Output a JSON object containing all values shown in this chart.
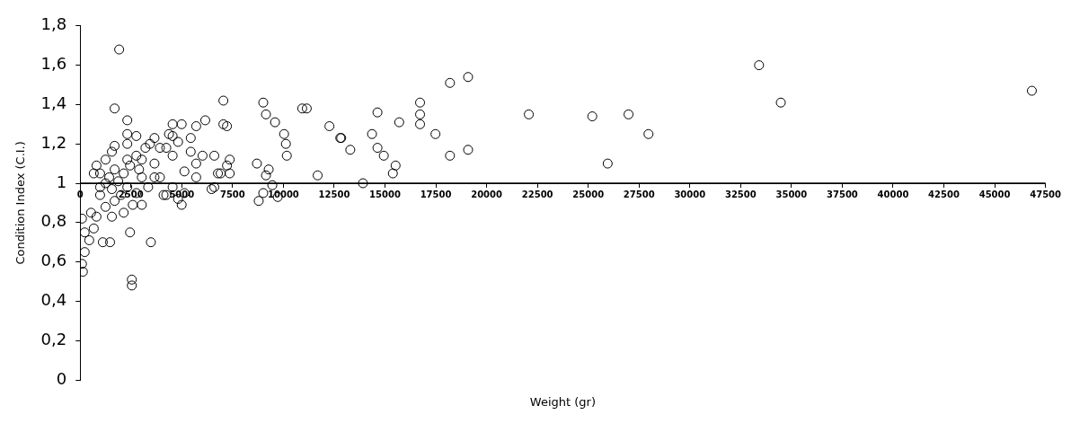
{
  "chart_data": {
    "type": "scatter",
    "xlabel": "Weight (gr)",
    "ylabel": "Condition Index (C.I.)",
    "xlim": [
      0,
      47500
    ],
    "xticks": [
      0,
      2500,
      5000,
      7500,
      10000,
      12500,
      15000,
      17500,
      20000,
      22500,
      25000,
      27500,
      30000,
      32500,
      35000,
      37500,
      40000,
      42500,
      45000,
      47500
    ],
    "ylim": [
      0,
      1.8
    ],
    "yticks": [
      0,
      {
        "value": 0.2,
        "label": "0,2"
      },
      {
        "value": 0.4,
        "label": "0,4"
      },
      {
        "value": 0.6,
        "label": "0,6"
      },
      {
        "value": 0.8,
        "label": "0,8"
      },
      1,
      {
        "value": 1.2,
        "label": "1,2"
      },
      {
        "value": 1.4,
        "label": "1,4"
      },
      {
        "value": 1.6,
        "label": "1,6"
      },
      {
        "value": 1.8,
        "label": "1,8"
      }
    ],
    "grid": false,
    "legend": false,
    "marker": "circle",
    "ref_lines": [
      {
        "axis": "y",
        "value": 1,
        "color": "#000000"
      }
    ],
    "series": [
      {
        "color": "#000000",
        "x": [
          33405,
          34476,
          46830,
          22077,
          25199,
          26983,
          27964,
          25957,
          19089,
          18197,
          19089,
          18197,
          17483,
          16725,
          16725,
          16725,
          15699,
          14629,
          14361,
          14629,
          14941,
          15521,
          15387,
          13915,
          12845,
          13291,
          12265,
          12800,
          10927,
          11150,
          9009,
          9143,
          9589,
          10035,
          10124,
          10169,
          11685,
          8697,
          9277,
          9143,
          9455,
          9009,
          9723,
          8786,
          7047,
          7047,
          6601,
          7225,
          7359,
          6779,
          6601,
          5709,
          6155,
          4995,
          4371,
          4549,
          4817,
          5441,
          6021,
          5709,
          5129,
          5709,
          5129,
          4549,
          3925,
          4103,
          3657,
          3925,
          3657,
          3211,
          2765,
          2453,
          2899,
          3033,
          2141,
          1695,
          2319,
          2319,
          1695,
          1695,
          1918,
          1249,
          981,
          1561,
          1873,
          1695,
          1249,
          535,
          89,
          223,
          446,
          223,
          89,
          134,
          669,
          803,
          1115,
          1472,
          2453,
          3479,
          2542,
          2542,
          2141,
          1561,
          2007,
          2319,
          2765,
          3345,
          4237,
          4995,
          6467,
          981,
          803,
          2319,
          3033,
          3434,
          2765,
          2319,
          1561,
          1249,
          669,
          981,
          1427,
          4237,
          4549,
          7225,
          6913,
          7359,
          4549,
          5441,
          3657,
          4817,
          3033,
          2587
        ],
        "values": [
          1.6,
          1.41,
          1.47,
          1.35,
          1.34,
          1.35,
          1.25,
          1.1,
          1.54,
          1.51,
          1.17,
          1.14,
          1.25,
          1.35,
          1.41,
          1.3,
          1.31,
          1.36,
          1.25,
          1.18,
          1.14,
          1.09,
          1.05,
          1.0,
          1.23,
          1.17,
          1.29,
          1.23,
          1.38,
          1.38,
          1.41,
          1.35,
          1.31,
          1.25,
          1.2,
          1.14,
          1.04,
          1.1,
          1.07,
          1.04,
          0.99,
          0.95,
          0.93,
          0.91,
          1.42,
          1.3,
          1.14,
          1.09,
          1.05,
          1.05,
          0.98,
          1.29,
          1.32,
          1.3,
          1.25,
          1.3,
          1.21,
          1.16,
          1.14,
          1.1,
          1.06,
          1.03,
          0.95,
          0.98,
          1.03,
          0.94,
          1.1,
          1.18,
          1.23,
          1.18,
          1.14,
          1.09,
          1.07,
          1.03,
          1.05,
          1.07,
          1.2,
          1.25,
          1.19,
          1.38,
          1.68,
          1.0,
          0.94,
          0.97,
          1.01,
          0.91,
          0.88,
          0.85,
          0.82,
          0.75,
          0.71,
          0.65,
          0.59,
          0.55,
          0.77,
          0.83,
          0.7,
          0.7,
          0.75,
          0.7,
          0.51,
          0.48,
          0.85,
          0.83,
          0.94,
          0.98,
          0.95,
          0.98,
          0.94,
          0.89,
          0.97,
          1.05,
          1.09,
          1.12,
          1.12,
          1.2,
          1.24,
          1.32,
          1.16,
          1.12,
          1.05,
          0.98,
          1.03,
          1.18,
          1.14,
          1.29,
          1.05,
          1.12,
          1.24,
          1.23,
          1.03,
          0.92,
          0.89,
          0.89
        ]
      }
    ]
  }
}
